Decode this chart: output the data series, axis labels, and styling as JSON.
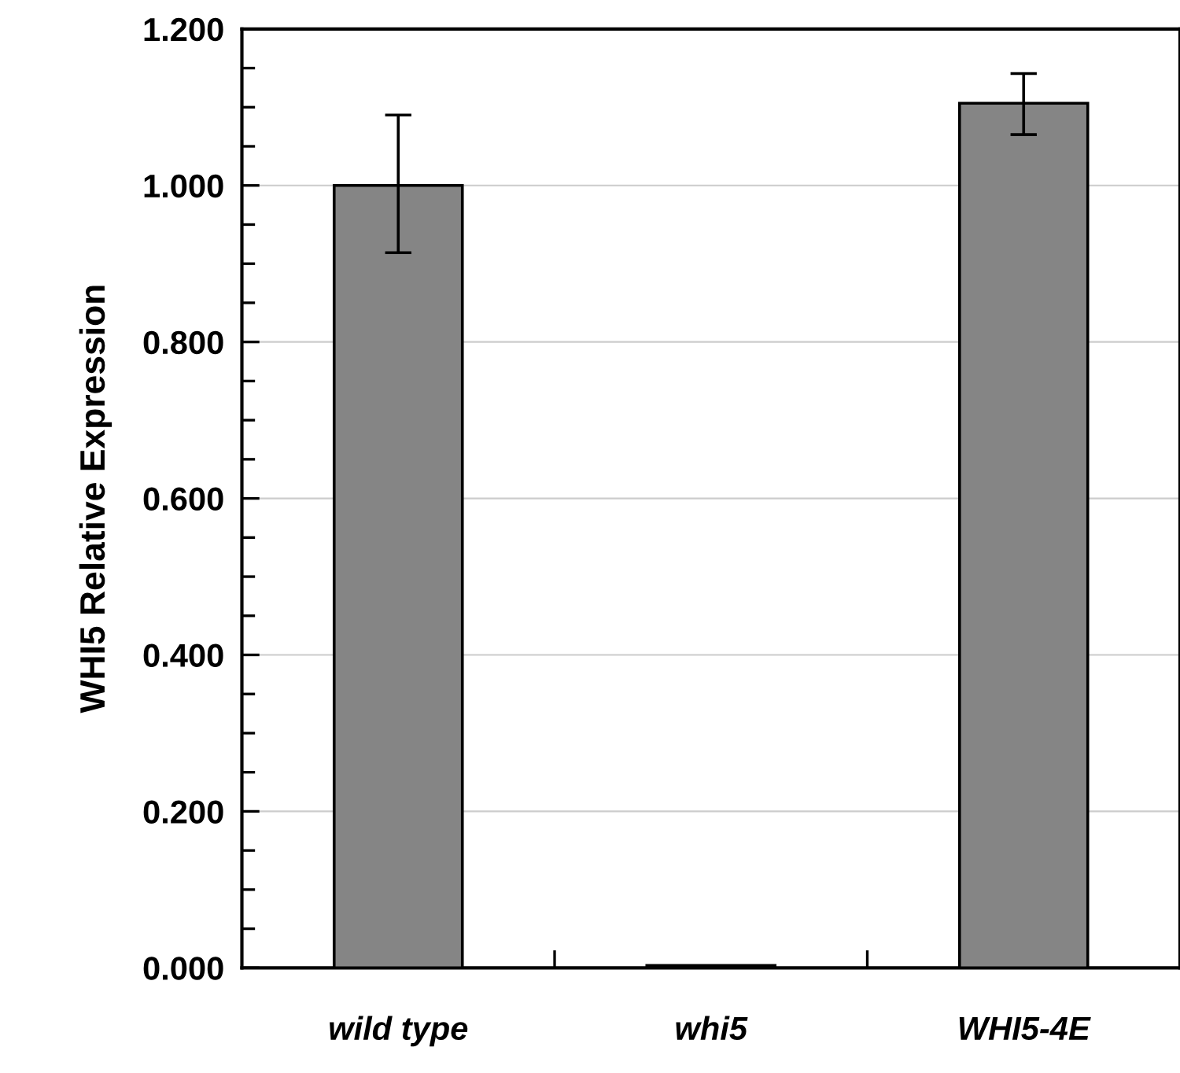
{
  "chart_data": {
    "type": "bar",
    "ylabel": "WHI5 Relative Expression",
    "categories": [
      "wild type",
      "whi5",
      "WHI5-4E"
    ],
    "values": [
      1.0,
      0.003,
      1.105
    ],
    "errors": [
      [
        0.914,
        1.09
      ],
      null,
      [
        1.065,
        1.143
      ]
    ],
    "color": "#858585",
    "ylim": [
      0,
      1.2
    ],
    "yticks": [
      {
        "value": 0,
        "label": "0.000"
      },
      {
        "value": 0.05,
        "label": null
      },
      {
        "value": 0.1,
        "label": null
      },
      {
        "value": 0.15,
        "label": null
      },
      {
        "value": 0.2,
        "label": "0.200"
      },
      {
        "value": 0.25,
        "label": null
      },
      {
        "value": 0.3,
        "label": null
      },
      {
        "value": 0.35,
        "label": null
      },
      {
        "value": 0.4,
        "label": "0.400"
      },
      {
        "value": 0.45,
        "label": null
      },
      {
        "value": 0.5,
        "label": null
      },
      {
        "value": 0.55,
        "label": null
      },
      {
        "value": 0.6,
        "label": "0.600"
      },
      {
        "value": 0.65,
        "label": null
      },
      {
        "value": 0.7,
        "label": null
      },
      {
        "value": 0.75,
        "label": null
      },
      {
        "value": 0.8,
        "label": "0.800"
      },
      {
        "value": 0.85,
        "label": null
      },
      {
        "value": 0.9,
        "label": null
      },
      {
        "value": 0.95,
        "label": null
      },
      {
        "value": 1.0,
        "label": "1.000"
      },
      {
        "value": 1.05,
        "label": null
      },
      {
        "value": 1.1,
        "label": null
      },
      {
        "value": 1.15,
        "label": null
      },
      {
        "value": 1.2,
        "label": "1.200"
      }
    ],
    "grid": "y"
  }
}
